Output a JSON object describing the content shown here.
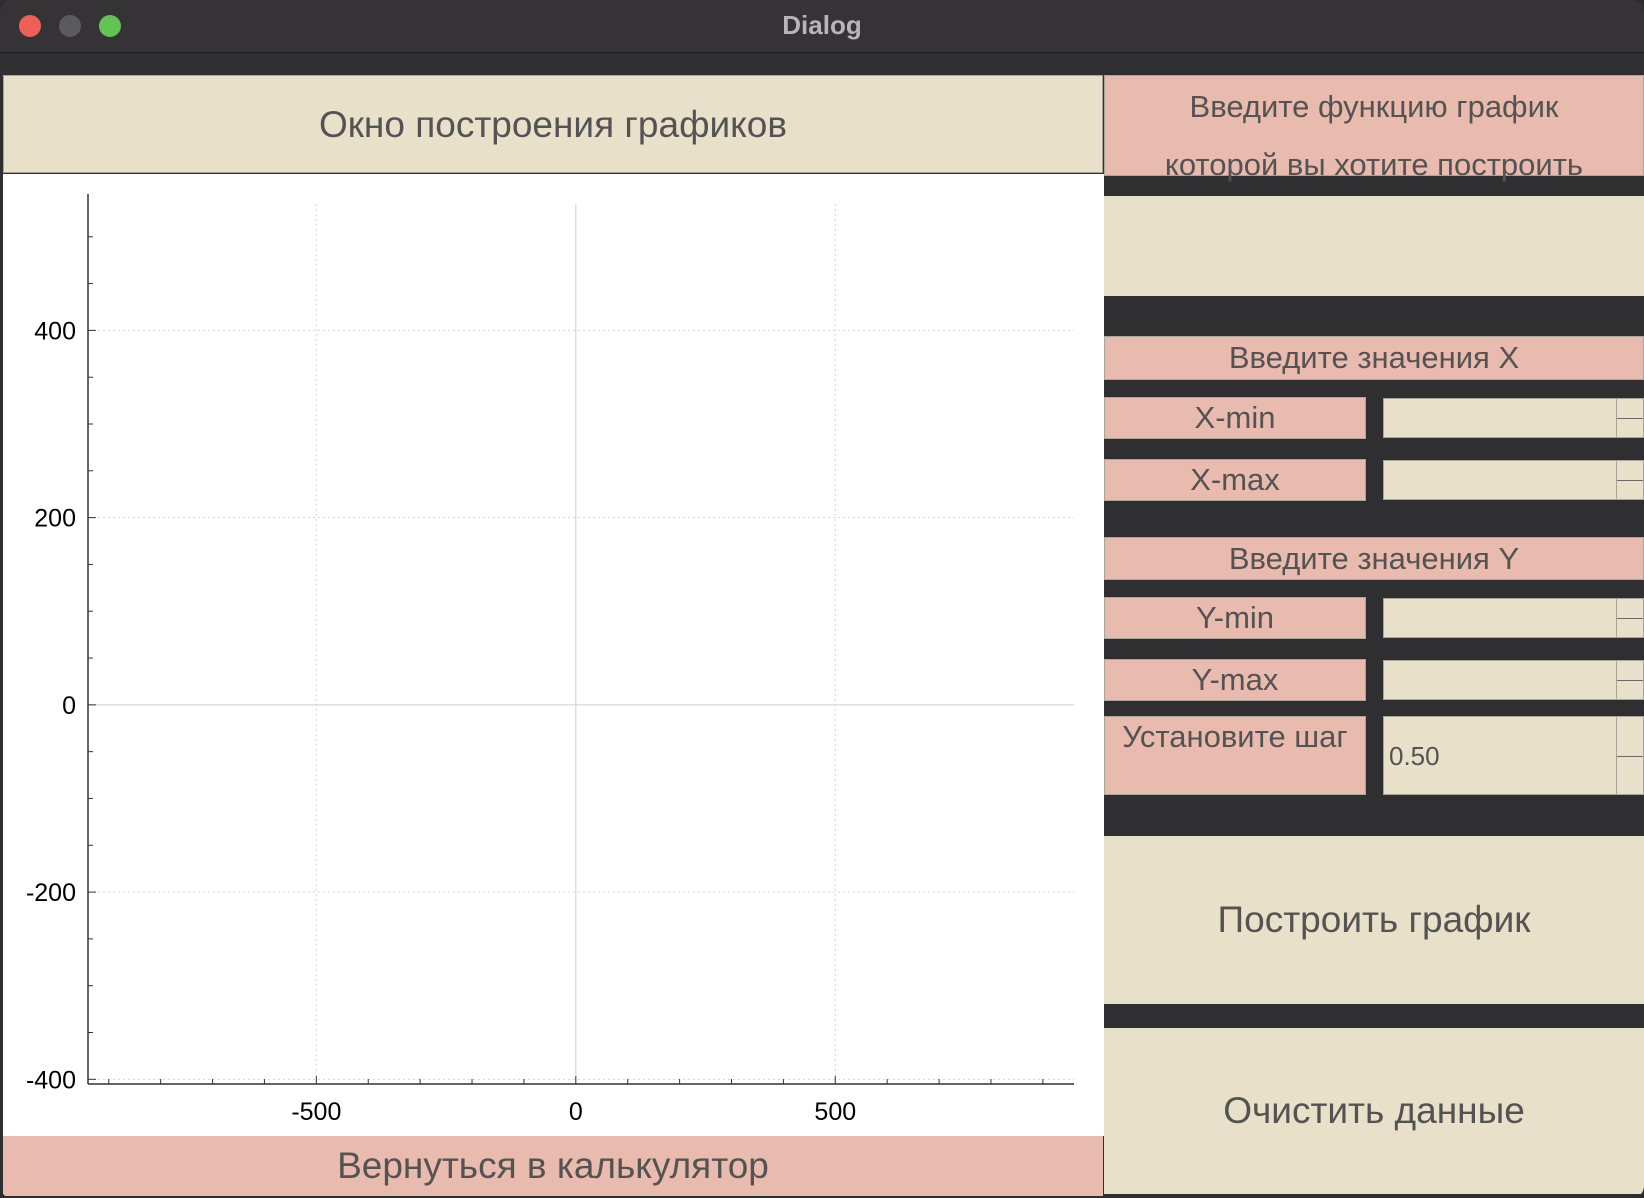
{
  "window": {
    "title": "Dialog"
  },
  "plot_title": "Окно построения графиков",
  "function_prompt": {
    "line1": "Введите функцию график",
    "line2": "которой вы хотите построить",
    "input_value": ""
  },
  "x_section": {
    "heading": "Введите значения X",
    "min_label": "X-min",
    "min_value": "",
    "max_label": "X-max",
    "max_value": ""
  },
  "y_section": {
    "heading": "Введите значения Y",
    "min_label": "Y-min",
    "min_value": "",
    "max_label": "Y-max",
    "max_value": ""
  },
  "step": {
    "label": "Установите шаг",
    "value": "0.50"
  },
  "buttons": {
    "plot": "Построить график",
    "clear": "Очистить данные",
    "back": "Вернуться в калькулятор"
  },
  "colors": {
    "beige": "#e9e0c9",
    "pink": "#e9bbae",
    "dark": "#2f2f31"
  },
  "chart_data": {
    "type": "line",
    "series": [],
    "xlim": [
      -940,
      960
    ],
    "ylim": [
      -405,
      535
    ],
    "x_ticks": [
      -500,
      0,
      500
    ],
    "x_tick_labels": [
      "-500",
      "0",
      "500"
    ],
    "y_ticks": [
      -400,
      -200,
      0,
      200,
      400
    ],
    "y_tick_labels": [
      "-400",
      "-200",
      "0",
      "200",
      "400"
    ],
    "grid": true,
    "title": "",
    "xlabel": "",
    "ylabel": ""
  }
}
